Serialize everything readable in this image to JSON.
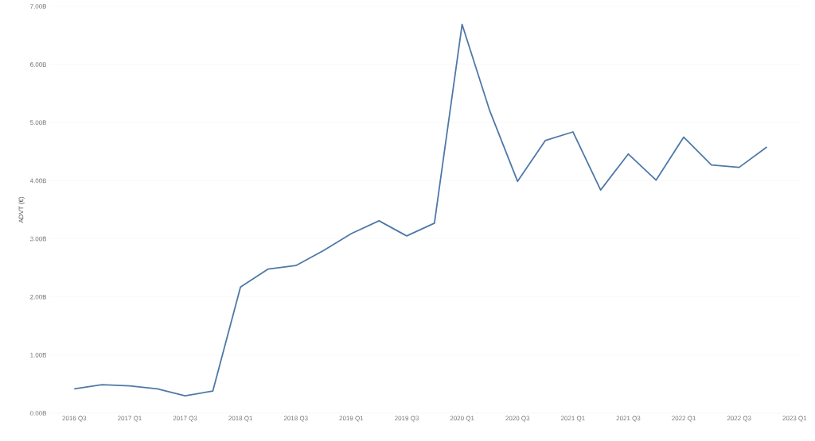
{
  "chart_data": {
    "type": "line",
    "ylabel": "ADVT (€)",
    "categories": [
      "2016 Q3",
      null,
      "2017 Q1",
      null,
      "2017 Q3",
      null,
      "2018 Q1",
      null,
      "2018 Q3",
      null,
      "2019 Q1",
      null,
      "2019 Q3",
      null,
      "2020 Q1",
      null,
      "2020 Q3",
      null,
      "2021 Q1",
      null,
      "2021 Q3",
      null,
      "2022 Q1",
      null,
      "2022 Q3",
      null,
      "2023 Q1"
    ],
    "series": [
      {
        "color": "#4e79a7",
        "values": [
          0.42,
          0.49,
          0.47,
          0.42,
          0.3,
          0.38,
          2.17,
          2.48,
          2.54,
          2.8,
          3.09,
          3.31,
          3.05,
          3.27,
          6.69,
          5.2,
          3.99,
          4.69,
          4.84,
          3.84,
          4.46,
          4.01,
          4.75,
          4.27,
          4.23,
          4.58,
          null
        ]
      }
    ],
    "ylim": [
      0,
      7
    ],
    "yticks": [
      {
        "value": 0,
        "label": "0.00B"
      },
      {
        "value": 1,
        "label": "1.00B"
      },
      {
        "value": 2,
        "label": "2.00B"
      },
      {
        "value": 3,
        "label": "3.00B"
      },
      {
        "value": 4,
        "label": "4.00B"
      },
      {
        "value": 5,
        "label": "5.00B"
      },
      {
        "value": 6,
        "label": "6.00B"
      },
      {
        "value": 7,
        "label": "7.00B"
      }
    ],
    "grid": "y",
    "marker": "none",
    "line_style": "solid"
  }
}
